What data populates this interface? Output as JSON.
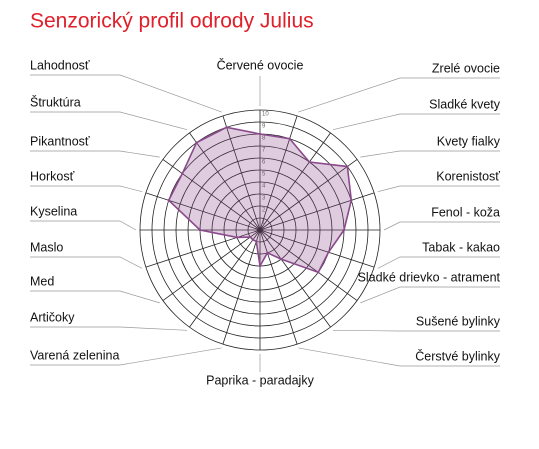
{
  "chart_data": {
    "type": "radar",
    "title": "Senzorický profil odrody Julius",
    "categories": [
      "Červené ovocie",
      "Zrelé ovocie",
      "Sladké kvety",
      "Kvety fialky",
      "Korenistosť",
      "Fenol - koža",
      "Tabak - kakao",
      "Sladké drievko - atrament",
      "Sušené bylinky",
      "Čerstvé bylinky",
      "Paprika - paradajky",
      "Varená zelenina",
      "Artičoky",
      "Med",
      "Maslo",
      "Kyselina",
      "Horkosť",
      "Pikantnosť",
      "Štruktúra",
      "Lahodnosť"
    ],
    "values": [
      8,
      8,
      7,
      9,
      8,
      7,
      6,
      6,
      3,
      2,
      3,
      1,
      1,
      1,
      2,
      5,
      8,
      8,
      9,
      9
    ],
    "color": "#8b4a8b",
    "rlim": [
      0,
      10
    ],
    "rticks": [
      1,
      2,
      3,
      4,
      5,
      6,
      7,
      8,
      9,
      10
    ],
    "grid": true
  }
}
